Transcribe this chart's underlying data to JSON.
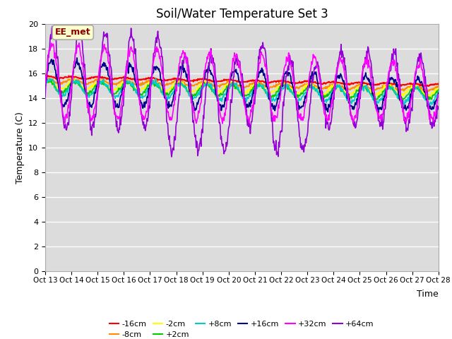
{
  "title": "Soil/Water Temperature Set 3",
  "xlabel": "Time",
  "ylabel": "Temperature (C)",
  "ylim": [
    0,
    20
  ],
  "yticks": [
    0,
    2,
    4,
    6,
    8,
    10,
    12,
    14,
    16,
    18,
    20
  ],
  "xtick_labels": [
    "Oct 13",
    "Oct 14",
    "Oct 15",
    "Oct 16",
    "Oct 17",
    "Oct 18",
    "Oct 19",
    "Oct 20",
    "Oct 21",
    "Oct 22",
    "Oct 23",
    "Oct 24",
    "Oct 25",
    "Oct 26",
    "Oct 27",
    "Oct 28"
  ],
  "annotation": "EE_met",
  "annotation_color": "#8B0000",
  "annotation_bg": "#FFFFCC",
  "bg_color": "#DCDCDC",
  "plot_bg": "#DCDCDC",
  "series": [
    {
      "label": "-16cm",
      "color": "#FF0000"
    },
    {
      "label": "-8cm",
      "color": "#FF8C00"
    },
    {
      "label": "-2cm",
      "color": "#FFFF00"
    },
    {
      "label": "+2cm",
      "color": "#00CC00"
    },
    {
      "label": "+8cm",
      "color": "#00CCCC"
    },
    {
      "label": "+16cm",
      "color": "#00008B"
    },
    {
      "label": "+32cm",
      "color": "#FF00FF"
    },
    {
      "label": "+64cm",
      "color": "#9400D3"
    }
  ],
  "title_fontsize": 12
}
